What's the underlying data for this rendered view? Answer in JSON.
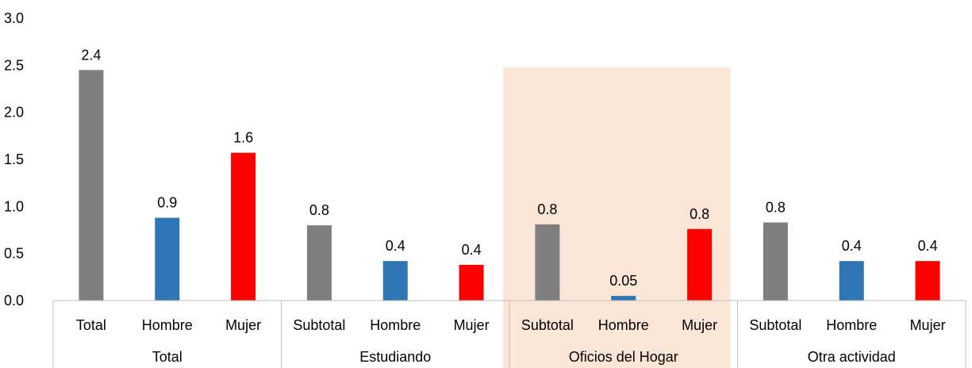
{
  "chart_data": {
    "type": "bar",
    "title": "",
    "xlabel": "",
    "ylabel": "",
    "ylim": [
      0,
      3.0
    ],
    "yticks": [
      "0.0",
      "0.5",
      "1.0",
      "1.5",
      "2.0",
      "2.5",
      "3.0"
    ],
    "grid": false,
    "highlight_group": "Oficios del Hogar",
    "colors": {
      "Total": "#7f7f7f",
      "Subtotal": "#7f7f7f",
      "Hombre": "#2e75b6",
      "Mujer": "#ff0000",
      "highlight": "#fbe5d6"
    },
    "groups": [
      {
        "name": "Total",
        "bars": [
          {
            "category": "Total",
            "value": 2.45,
            "label": "2.4"
          },
          {
            "category": "Hombre",
            "value": 0.88,
            "label": "0.9"
          },
          {
            "category": "Mujer",
            "value": 1.57,
            "label": "1.6"
          }
        ]
      },
      {
        "name": "Estudiando",
        "bars": [
          {
            "category": "Subtotal",
            "value": 0.8,
            "label": "0.8"
          },
          {
            "category": "Hombre",
            "value": 0.42,
            "label": "0.4"
          },
          {
            "category": "Mujer",
            "value": 0.38,
            "label": "0.4"
          }
        ]
      },
      {
        "name": "Oficios del Hogar",
        "bars": [
          {
            "category": "Subtotal",
            "value": 0.81,
            "label": "0.8"
          },
          {
            "category": "Hombre",
            "value": 0.05,
            "label": "0.05"
          },
          {
            "category": "Mujer",
            "value": 0.76,
            "label": "0.8"
          }
        ]
      },
      {
        "name": "Otra actividad",
        "bars": [
          {
            "category": "Subtotal",
            "value": 0.83,
            "label": "0.8"
          },
          {
            "category": "Hombre",
            "value": 0.42,
            "label": "0.4"
          },
          {
            "category": "Mujer",
            "value": 0.42,
            "label": "0.4"
          }
        ]
      }
    ]
  }
}
